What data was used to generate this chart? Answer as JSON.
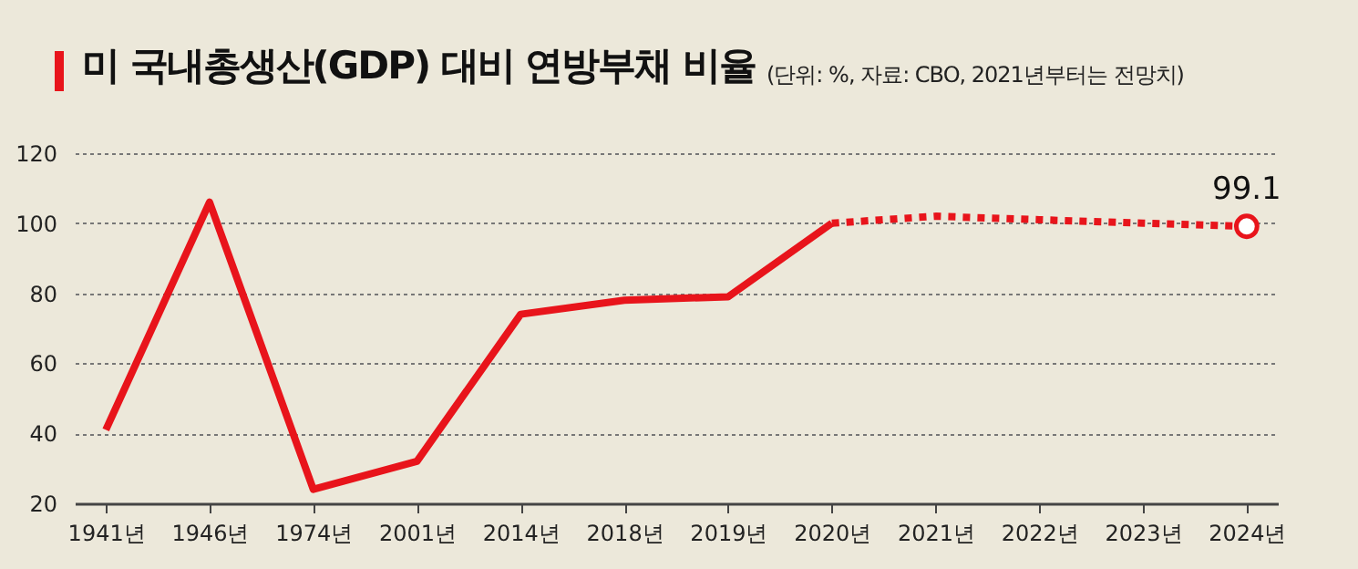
{
  "chart_data": {
    "type": "line",
    "title": "미 국내총생산(GDP) 대비 연방부채 비율",
    "subtitle": "(단위: %, 자료: CBO, 2021년부터는 전망치)",
    "categories": [
      "1941년",
      "1946년",
      "1974년",
      "2001년",
      "2014년",
      "2018년",
      "2019년",
      "2020년",
      "2021년",
      "2022년",
      "2023년",
      "2024년"
    ],
    "series": [
      {
        "color": "#e8141b",
        "line_style": "solid",
        "values": [
          41,
          106,
          24,
          32,
          74,
          78,
          79,
          100,
          null,
          null,
          null,
          null
        ]
      },
      {
        "color": "#e8141b",
        "line_style": "dotted",
        "values": [
          null,
          null,
          null,
          null,
          null,
          null,
          null,
          100,
          102,
          101,
          100,
          99.1
        ]
      },
      {
        "type": "scatter",
        "color": "#e8141b",
        "marker": "circle",
        "x": [
          "2024년"
        ],
        "values": [
          99.1
        ],
        "value_labels": [
          "99.1"
        ]
      }
    ],
    "ylim": [
      20,
      120
    ],
    "yticks": [
      20,
      40,
      60,
      80,
      100,
      120
    ],
    "grid": "y",
    "marker": "none"
  }
}
